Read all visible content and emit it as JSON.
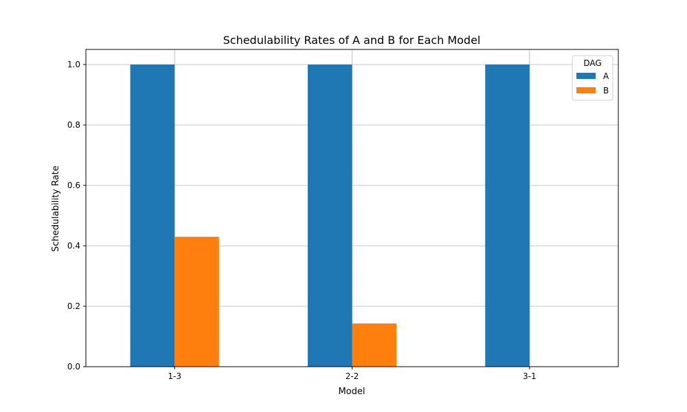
{
  "chart_data": {
    "type": "bar",
    "title": "Schedulability Rates of A and B for Each Model",
    "xlabel": "Model",
    "ylabel": "Schedulability Rate",
    "categories": [
      "1-3",
      "2-2",
      "3-1"
    ],
    "series": [
      {
        "name": "A",
        "values": [
          1.0,
          1.0,
          1.0
        ],
        "color": "#1f77b4"
      },
      {
        "name": "B",
        "values": [
          0.43,
          0.143,
          0.0
        ],
        "color": "#ff7f0e"
      }
    ],
    "ylim": [
      0,
      1.05
    ],
    "yticks": [
      0.0,
      0.2,
      0.4,
      0.6,
      0.8,
      1.0
    ],
    "ytick_labels": [
      "0.0",
      "0.2",
      "0.4",
      "0.6",
      "0.8",
      "1.0"
    ],
    "grid": true,
    "legend": {
      "title": "DAG",
      "position": "top-right"
    }
  }
}
